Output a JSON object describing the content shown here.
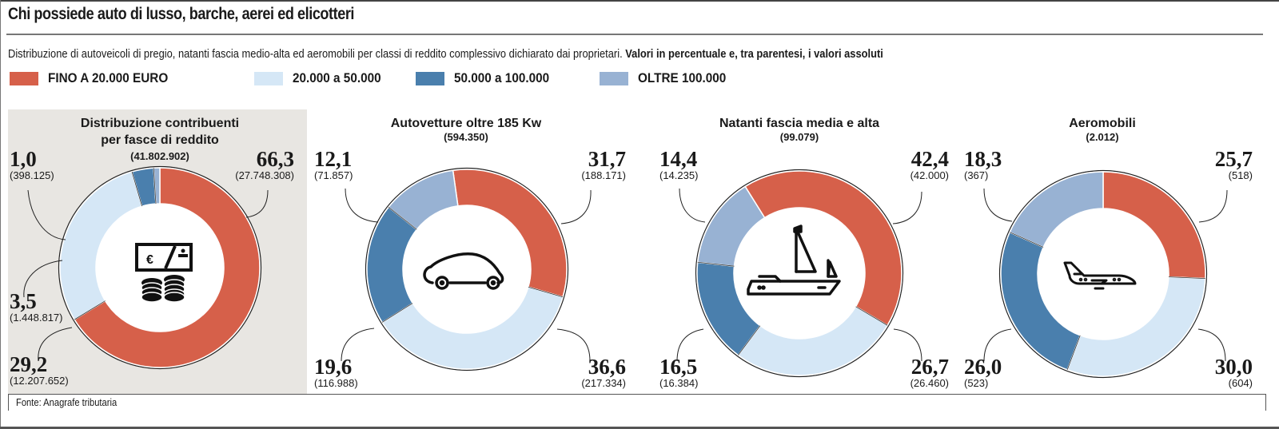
{
  "title": "Chi possiede auto di lusso, barche, aerei ed elicotteri",
  "subtitle_regular": "Distribuzione di autoveicoli di pregio, natanti fascia medio-alta ed aeromobili per classi di reddito complessivo dichiarato dai proprietari.",
  "subtitle_bold": "Valori in percentuale e, tra parentesi, i valori assoluti",
  "legend": [
    {
      "label": "FINO A 20.000 EURO",
      "color": "#d6604a"
    },
    {
      "label": "20.000 a 50.000",
      "color": "#d5e7f6"
    },
    {
      "label": "50.000 a 100.000",
      "color": "#4a7fad"
    },
    {
      "label": "OLTRE  100.000",
      "color": "#98b2d3"
    }
  ],
  "source": "Fonte: Anagrafe tributaria",
  "chart_data": [
    {
      "type": "pie",
      "donut": true,
      "title_lines": [
        "Distribuzione contribuenti",
        "per fasce di reddito"
      ],
      "total": "(41.802.902)",
      "icon": "money-icon",
      "categories": [
        "FINO A 20.000 EURO",
        "20.000 a 50.000",
        "50.000 a 100.000",
        "OLTRE 100.000"
      ],
      "values": [
        66.3,
        29.2,
        3.5,
        1.0
      ],
      "labels": [
        "66,3",
        "29,2",
        "3,5",
        "1,0"
      ],
      "absolute": [
        "(27.748.308)",
        "(12.207.652)",
        "(1.448.817)",
        "(398.125)"
      ]
    },
    {
      "type": "pie",
      "donut": true,
      "title_lines": [
        "Autovetture oltre 185 Kw"
      ],
      "total": "(594.350)",
      "icon": "car-icon",
      "categories": [
        "FINO A 20.000 EURO",
        "20.000 a 50.000",
        "50.000 a 100.000",
        "OLTRE 100.000"
      ],
      "values": [
        31.7,
        36.6,
        19.6,
        12.1
      ],
      "labels": [
        "31,7",
        "36,6",
        "19,6",
        "12,1"
      ],
      "absolute": [
        "(188.171)",
        "(217.334)",
        "(116.988)",
        "(71.857)"
      ]
    },
    {
      "type": "pie",
      "donut": true,
      "title_lines": [
        "Natanti fascia media e alta"
      ],
      "total": "(99.079)",
      "icon": "boat-icon",
      "categories": [
        "FINO A 20.000 EURO",
        "20.000 a 50.000",
        "50.000 a 100.000",
        "OLTRE 100.000"
      ],
      "values": [
        42.4,
        26.7,
        16.5,
        14.4
      ],
      "labels": [
        "42,4",
        "26,7",
        "16,5",
        "14,4"
      ],
      "absolute": [
        "(42.000)",
        "(26.460)",
        "(16.384)",
        "(14.235)"
      ]
    },
    {
      "type": "pie",
      "donut": true,
      "title_lines": [
        "Aeromobili"
      ],
      "total": "(2.012)",
      "icon": "airplane-icon",
      "categories": [
        "FINO A 20.000 EURO",
        "20.000 a 50.000",
        "50.000 a 100.000",
        "OLTRE 100.000"
      ],
      "values": [
        25.7,
        30.0,
        26.0,
        18.3
      ],
      "labels": [
        "25,7",
        "30,0",
        "26,0",
        "18,3"
      ],
      "absolute": [
        "(518)",
        "(604)",
        "(523)",
        "(367)"
      ]
    }
  ]
}
